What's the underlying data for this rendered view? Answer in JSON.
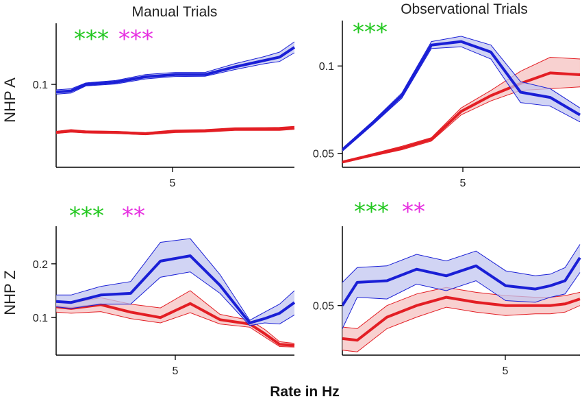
{
  "figure": {
    "col_titles": [
      "Manual Trials",
      "Observational Trials"
    ],
    "row_labels": [
      "NHP A",
      "NHP Z"
    ],
    "xlabel": "Rate in Hz",
    "colors": {
      "blue": "#1a1fd6",
      "blue_fill": "#c2c6f0",
      "red": "#e31e24",
      "red_fill": "#f5c2c0",
      "green_stars": "#22c71f",
      "magenta_stars": "#e62ee0"
    }
  },
  "chart_data": [
    {
      "id": "manual-nhp-a",
      "type": "line",
      "title": "Manual Trials",
      "ylabel": "NHP A",
      "xlim": [
        1,
        9
      ],
      "ylim": [
        0.062,
        0.128
      ],
      "x_ticks": [
        5
      ],
      "y_ticks": [
        0.1
      ],
      "significance": [
        {
          "text": "***",
          "color": "#22c71f"
        },
        {
          "text": "***",
          "color": "#e62ee0"
        }
      ],
      "x": [
        1,
        1.5,
        2,
        3,
        4,
        5,
        6,
        7,
        8,
        8.5,
        9
      ],
      "series": [
        {
          "name": "blue",
          "values": [
            0.0965,
            0.097,
            0.1,
            0.101,
            0.1035,
            0.1045,
            0.1045,
            0.108,
            0.111,
            0.1125,
            0.117
          ],
          "lower": [
            0.0955,
            0.096,
            0.0993,
            0.1002,
            0.1025,
            0.1036,
            0.1037,
            0.1068,
            0.1095,
            0.1105,
            0.1145
          ],
          "upper": [
            0.0975,
            0.098,
            0.1007,
            0.1018,
            0.1045,
            0.1055,
            0.1055,
            0.1095,
            0.1128,
            0.1148,
            0.1195
          ]
        },
        {
          "name": "red",
          "values": [
            0.078,
            0.0787,
            0.0782,
            0.078,
            0.0774,
            0.0785,
            0.0787,
            0.0795,
            0.0795,
            0.0796,
            0.0801
          ],
          "lower": [
            0.0775,
            0.0781,
            0.0777,
            0.0775,
            0.0769,
            0.0779,
            0.0781,
            0.0789,
            0.0789,
            0.0789,
            0.0794
          ],
          "upper": [
            0.0785,
            0.0793,
            0.0787,
            0.0785,
            0.0779,
            0.0791,
            0.0793,
            0.0801,
            0.0802,
            0.0803,
            0.0808
          ]
        }
      ]
    },
    {
      "id": "observational-nhp-a",
      "type": "line",
      "title": "Observational Trials",
      "ylabel": "",
      "xlim": [
        1,
        9
      ],
      "ylim": [
        0.042,
        0.126
      ],
      "x_ticks": [
        5
      ],
      "y_ticks": [
        0.05,
        0.1
      ],
      "significance": [
        {
          "text": "***",
          "color": "#22c71f"
        }
      ],
      "x": [
        1,
        2,
        3,
        4,
        5,
        6,
        7,
        8,
        9
      ],
      "series": [
        {
          "name": "blue",
          "values": [
            0.052,
            0.067,
            0.083,
            0.112,
            0.114,
            0.108,
            0.085,
            0.082,
            0.072
          ],
          "lower": [
            0.0512,
            0.066,
            0.0815,
            0.11,
            0.111,
            0.104,
            0.079,
            0.077,
            0.068
          ],
          "upper": [
            0.0528,
            0.068,
            0.0845,
            0.114,
            0.117,
            0.112,
            0.091,
            0.087,
            0.076
          ]
        },
        {
          "name": "red",
          "values": [
            0.045,
            0.049,
            0.053,
            0.058,
            0.074,
            0.083,
            0.09,
            0.096,
            0.095
          ],
          "lower": [
            0.0445,
            0.0483,
            0.052,
            0.057,
            0.072,
            0.08,
            0.086,
            0.087,
            0.088
          ],
          "upper": [
            0.0455,
            0.0497,
            0.054,
            0.059,
            0.076,
            0.086,
            0.097,
            0.105,
            0.104
          ]
        }
      ]
    },
    {
      "id": "manual-nhp-z",
      "type": "line",
      "title": "",
      "ylabel": "NHP Z",
      "xlim": [
        1,
        9
      ],
      "ylim": [
        0.03,
        0.27
      ],
      "x_ticks": [
        5
      ],
      "y_ticks": [
        0.1,
        0.2
      ],
      "significance": [
        {
          "text": "***",
          "color": "#22c71f"
        },
        {
          "text": "**",
          "color": "#e62ee0"
        }
      ],
      "x": [
        1,
        1.5,
        2.5,
        3.5,
        4.5,
        5.5,
        6.5,
        7.5,
        8,
        8.5,
        9
      ],
      "series": [
        {
          "name": "blue",
          "values": [
            0.13,
            0.128,
            0.142,
            0.145,
            0.205,
            0.215,
            0.16,
            0.09,
            0.098,
            0.108,
            0.128
          ],
          "lower": [
            0.12,
            0.117,
            0.125,
            0.125,
            0.175,
            0.185,
            0.145,
            0.085,
            0.09,
            0.088,
            0.105
          ],
          "upper": [
            0.142,
            0.142,
            0.158,
            0.167,
            0.24,
            0.247,
            0.18,
            0.095,
            0.11,
            0.125,
            0.15
          ]
        },
        {
          "name": "red",
          "values": [
            0.12,
            0.117,
            0.124,
            0.11,
            0.1,
            0.126,
            0.096,
            0.088,
            0.07,
            0.05,
            0.048
          ],
          "lower": [
            0.11,
            0.108,
            0.111,
            0.098,
            0.09,
            0.109,
            0.088,
            0.082,
            0.064,
            0.046,
            0.045
          ],
          "upper": [
            0.13,
            0.127,
            0.137,
            0.125,
            0.118,
            0.15,
            0.106,
            0.095,
            0.078,
            0.055,
            0.052
          ]
        }
      ]
    },
    {
      "id": "observational-nhp-z",
      "type": "line",
      "title": "",
      "ylabel": "",
      "xlim": [
        1,
        9
      ],
      "ylim": [
        0.02,
        0.098
      ],
      "x_ticks": [
        5
      ],
      "y_ticks": [
        0.05
      ],
      "significance": [
        {
          "text": "***",
          "color": "#22c71f"
        },
        {
          "text": "**",
          "color": "#e62ee0"
        }
      ],
      "x": [
        1,
        1.5,
        2.5,
        3.5,
        4.5,
        5.5,
        6.5,
        7.5,
        8,
        8.5,
        9
      ],
      "series": [
        {
          "name": "blue",
          "values": [
            0.05,
            0.064,
            0.065,
            0.072,
            0.068,
            0.074,
            0.062,
            0.06,
            0.062,
            0.065,
            0.079
          ],
          "lower": [
            0.036,
            0.055,
            0.054,
            0.063,
            0.059,
            0.065,
            0.053,
            0.052,
            0.055,
            0.057,
            0.07
          ],
          "upper": [
            0.064,
            0.073,
            0.074,
            0.081,
            0.077,
            0.083,
            0.071,
            0.068,
            0.069,
            0.073,
            0.087
          ]
        },
        {
          "name": "red",
          "values": [
            0.03,
            0.029,
            0.043,
            0.05,
            0.055,
            0.052,
            0.05,
            0.05,
            0.05,
            0.051,
            0.054
          ],
          "lower": [
            0.023,
            0.022,
            0.036,
            0.043,
            0.049,
            0.046,
            0.044,
            0.045,
            0.045,
            0.046,
            0.05
          ],
          "upper": [
            0.037,
            0.036,
            0.05,
            0.057,
            0.061,
            0.058,
            0.056,
            0.055,
            0.055,
            0.056,
            0.058
          ]
        }
      ]
    }
  ]
}
